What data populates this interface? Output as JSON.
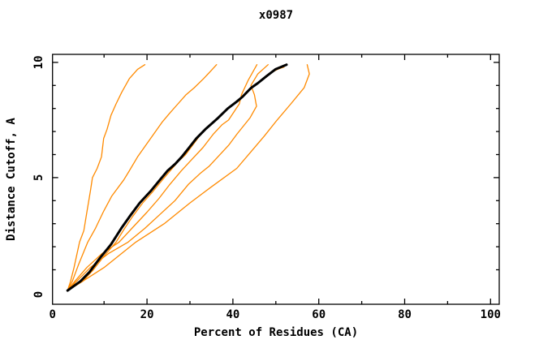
{
  "title": "x0987",
  "colors": {
    "background": "#ffffff",
    "foreground": "#000000",
    "accent_orange": "#ff8a00",
    "reference_black": "#000000"
  },
  "chart_data": {
    "type": "line",
    "title": "x0987",
    "xlabel": "Percent of Residues (CA)",
    "ylabel": "Distance Cutoff, A",
    "xlim": [
      0,
      100
    ],
    "ylim": [
      0,
      10
    ],
    "grid": false,
    "legend": "none",
    "x_ticks_minor_step": 10,
    "y_ticks_minor_step": 1,
    "x_ticks_labeled": [
      {
        "value": 0,
        "label": "0"
      },
      {
        "value": 20,
        "label": "20"
      },
      {
        "value": 40,
        "label": "40"
      },
      {
        "value": 60,
        "label": "60"
      },
      {
        "value": 80,
        "label": "80"
      },
      {
        "value": 100,
        "label": "100"
      }
    ],
    "y_ticks_labeled": [
      {
        "value": 0,
        "label": "0"
      },
      {
        "value": 5,
        "label": "5"
      },
      {
        "value": 10,
        "label": "10"
      }
    ],
    "series": [
      {
        "name": "orange-curve-1",
        "color": "#ff8a00",
        "width": 1.3,
        "points": [
          [
            1.5,
            0.1
          ],
          [
            2.2,
            0.5
          ],
          [
            3.0,
            1.1
          ],
          [
            4.3,
            2.2
          ],
          [
            5.3,
            2.7
          ],
          [
            6.0,
            3.5
          ],
          [
            6.8,
            4.4
          ],
          [
            7.3,
            5.0
          ],
          [
            8.4,
            5.4
          ],
          [
            9.4,
            5.9
          ],
          [
            9.9,
            6.7
          ],
          [
            10.7,
            7.1
          ],
          [
            11.6,
            7.7
          ],
          [
            12.8,
            8.2
          ],
          [
            14.1,
            8.7
          ],
          [
            15.9,
            9.3
          ],
          [
            17.8,
            9.7
          ],
          [
            19.5,
            9.9
          ]
        ]
      },
      {
        "name": "orange-curve-2",
        "color": "#ff8a00",
        "width": 1.3,
        "points": [
          [
            1.5,
            0.1
          ],
          [
            2.6,
            0.5
          ],
          [
            4.0,
            1.2
          ],
          [
            6.2,
            2.2
          ],
          [
            8.0,
            2.8
          ],
          [
            9.8,
            3.5
          ],
          [
            11.8,
            4.2
          ],
          [
            14.6,
            4.9
          ],
          [
            15.9,
            5.3
          ],
          [
            17.8,
            5.9
          ],
          [
            19.7,
            6.4
          ],
          [
            21.6,
            6.9
          ],
          [
            23.5,
            7.4
          ],
          [
            25.3,
            7.8
          ],
          [
            27.2,
            8.2
          ],
          [
            29.1,
            8.6
          ],
          [
            31.0,
            8.9
          ],
          [
            33.2,
            9.3
          ],
          [
            34.7,
            9.6
          ],
          [
            36.2,
            9.9
          ]
        ]
      },
      {
        "name": "orange-curve-3",
        "color": "#ff8a00",
        "width": 1.3,
        "points": [
          [
            1.5,
            0.1
          ],
          [
            3.2,
            0.5
          ],
          [
            6.0,
            1.1
          ],
          [
            9.5,
            1.7
          ],
          [
            13.5,
            2.2
          ],
          [
            17.0,
            2.9
          ],
          [
            20.0,
            3.5
          ],
          [
            22.8,
            4.1
          ],
          [
            25.3,
            4.7
          ],
          [
            28.0,
            5.3
          ],
          [
            30.5,
            5.8
          ],
          [
            33.0,
            6.3
          ],
          [
            35.5,
            6.9
          ],
          [
            37.5,
            7.3
          ],
          [
            39.0,
            7.5
          ],
          [
            41.5,
            8.2
          ],
          [
            42.0,
            8.6
          ],
          [
            43.5,
            9.2
          ],
          [
            45.6,
            9.9
          ]
        ]
      },
      {
        "name": "orange-curve-4",
        "color": "#ff8a00",
        "width": 1.3,
        "points": [
          [
            1.5,
            0.1
          ],
          [
            3.6,
            0.5
          ],
          [
            6.8,
            1.1
          ],
          [
            11.0,
            1.7
          ],
          [
            15.6,
            2.2
          ],
          [
            19.5,
            2.8
          ],
          [
            23.0,
            3.4
          ],
          [
            26.5,
            4.0
          ],
          [
            29.6,
            4.7
          ],
          [
            32.5,
            5.2
          ],
          [
            34.5,
            5.5
          ],
          [
            36.5,
            5.9
          ],
          [
            39.0,
            6.4
          ],
          [
            41.0,
            6.9
          ],
          [
            44.0,
            7.6
          ],
          [
            45.5,
            8.1
          ],
          [
            45.0,
            8.6
          ],
          [
            44.2,
            9.0
          ],
          [
            45.8,
            9.5
          ],
          [
            48.2,
            9.9
          ]
        ]
      },
      {
        "name": "orange-curve-5",
        "color": "#ff8a00",
        "width": 1.3,
        "points": [
          [
            1.5,
            0.1
          ],
          [
            5.0,
            0.5
          ],
          [
            7.5,
            1.0
          ],
          [
            10.0,
            1.6
          ],
          [
            12.8,
            2.2
          ],
          [
            14.8,
            2.8
          ],
          [
            16.6,
            3.3
          ],
          [
            19.0,
            3.9
          ],
          [
            21.4,
            4.4
          ],
          [
            23.6,
            4.9
          ],
          [
            25.4,
            5.3
          ],
          [
            27.3,
            5.7
          ],
          [
            29.0,
            6.0
          ],
          [
            30.6,
            6.4
          ],
          [
            32.2,
            6.8
          ],
          [
            34.2,
            7.2
          ],
          [
            35.9,
            7.5
          ],
          [
            37.3,
            7.7
          ],
          [
            39.4,
            8.1
          ],
          [
            41.4,
            8.4
          ],
          [
            42.9,
            8.6
          ],
          [
            44.9,
            9.0
          ],
          [
            46.4,
            9.2
          ],
          [
            48.4,
            9.5
          ],
          [
            50.4,
            9.7
          ],
          [
            51.9,
            9.8
          ]
        ]
      },
      {
        "name": "orange-curve-6",
        "color": "#ff8a00",
        "width": 1.3,
        "points": [
          [
            1.5,
            0.1
          ],
          [
            5.0,
            0.5
          ],
          [
            10.0,
            1.1
          ],
          [
            17.4,
            2.2
          ],
          [
            24.0,
            3.0
          ],
          [
            30.0,
            3.9
          ],
          [
            35.0,
            4.6
          ],
          [
            40.9,
            5.4
          ],
          [
            44.1,
            6.1
          ],
          [
            47.3,
            6.8
          ],
          [
            50.3,
            7.5
          ],
          [
            53.5,
            8.2
          ],
          [
            56.6,
            8.9
          ],
          [
            57.8,
            9.5
          ],
          [
            57.3,
            9.9
          ]
        ]
      },
      {
        "name": "black-reference-curve",
        "color": "#000000",
        "width": 3,
        "points": [
          [
            1.5,
            0.1
          ],
          [
            4.5,
            0.5
          ],
          [
            6.6,
            0.9
          ],
          [
            9.0,
            1.5
          ],
          [
            11.6,
            2.1
          ],
          [
            14.0,
            2.8
          ],
          [
            15.9,
            3.3
          ],
          [
            18.3,
            3.9
          ],
          [
            20.8,
            4.4
          ],
          [
            23.0,
            4.9
          ],
          [
            24.8,
            5.3
          ],
          [
            26.6,
            5.6
          ],
          [
            28.1,
            5.9
          ],
          [
            29.8,
            6.3
          ],
          [
            31.5,
            6.7
          ],
          [
            33.6,
            7.1
          ],
          [
            35.4,
            7.4
          ],
          [
            36.6,
            7.6
          ],
          [
            38.8,
            8.0
          ],
          [
            40.9,
            8.3
          ],
          [
            42.2,
            8.5
          ],
          [
            44.3,
            8.9
          ],
          [
            45.8,
            9.1
          ],
          [
            47.8,
            9.4
          ],
          [
            49.9,
            9.7
          ],
          [
            52.5,
            9.9
          ]
        ]
      }
    ]
  }
}
